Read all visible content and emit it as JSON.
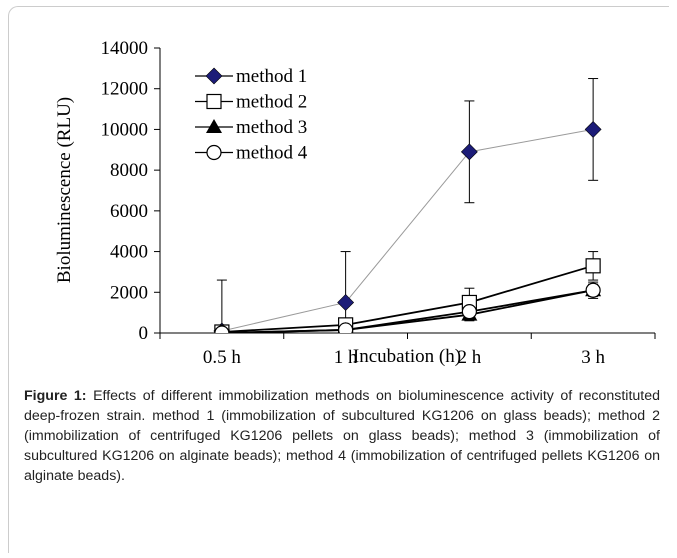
{
  "chart_data": {
    "type": "line",
    "y_label": "Bioluminescence (RLU)",
    "x_label": "Incubation (h)",
    "categories": [
      "0.5 h",
      "1 h",
      "2 h",
      "3 h"
    ],
    "series": [
      {
        "name": "method 1",
        "color": "#1c1c78",
        "line_color": "#9a9a9a",
        "marker": "diamond",
        "values": [
          100,
          1500,
          8900,
          10000
        ],
        "errors": [
          2500,
          2500,
          2500,
          2500
        ]
      },
      {
        "name": "method 2",
        "color": "#000000",
        "line_color": "#000000",
        "marker": "square-open",
        "values": [
          50,
          400,
          1500,
          3300
        ],
        "errors": [
          300,
          300,
          700,
          700
        ]
      },
      {
        "name": "method 3",
        "color": "#000000",
        "line_color": "#000000",
        "marker": "triangle",
        "values": [
          0,
          150,
          900,
          2100
        ],
        "errors": [
          100,
          100,
          300,
          300
        ]
      },
      {
        "name": "method 4",
        "color": "#000000",
        "line_color": "#000000",
        "marker": "circle-open",
        "values": [
          0,
          150,
          1050,
          2100
        ],
        "errors": [
          100,
          100,
          300,
          400
        ]
      }
    ],
    "ylim": [
      0,
      14000
    ],
    "yticks": [
      0,
      2000,
      4000,
      6000,
      8000,
      10000,
      12000,
      14000
    ],
    "legend": "top-left"
  },
  "caption": {
    "label": "Figure 1:",
    "text": "Effects of different immobilization methods on bioluminescence activity of reconstituted deep-frozen strain. method 1 (immobilization of subcultured KG1206 on glass beads); method 2 (immobilization of centrifuged KG1206 pellets on glass beads); method 3 (immobilization of subcultured KG1206 on alginate beads); method 4 (immobilization of centrifuged pellets KG1206 on alginate beads)."
  }
}
